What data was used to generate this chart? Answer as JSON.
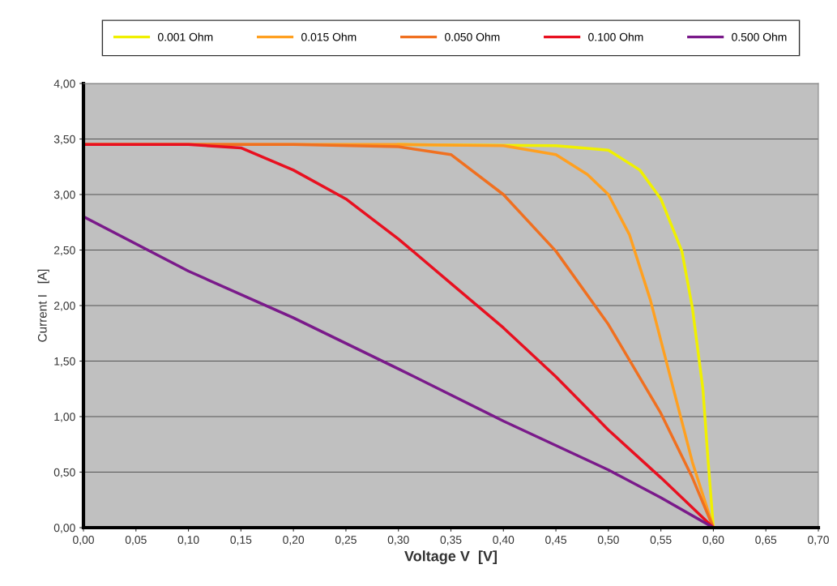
{
  "chart_data": {
    "type": "line",
    "xlabel": "Voltage V  [V]",
    "ylabel": "Current I   [A]",
    "xlim": [
      0,
      0.7
    ],
    "ylim": [
      0,
      4
    ],
    "xticks": [
      {
        "value": 0,
        "label": "0,00"
      },
      {
        "value": 0.05,
        "label": "0,05"
      },
      {
        "value": 0.1,
        "label": "0,10"
      },
      {
        "value": 0.15,
        "label": "0,15"
      },
      {
        "value": 0.2,
        "label": "0,20"
      },
      {
        "value": 0.25,
        "label": "0,25"
      },
      {
        "value": 0.3,
        "label": "0,30"
      },
      {
        "value": 0.35,
        "label": "0,35"
      },
      {
        "value": 0.4,
        "label": "0,40"
      },
      {
        "value": 0.45,
        "label": "0,45"
      },
      {
        "value": 0.5,
        "label": "0,50"
      },
      {
        "value": 0.55,
        "label": "0,55"
      },
      {
        "value": 0.6,
        "label": "0,60"
      },
      {
        "value": 0.65,
        "label": "0,65"
      },
      {
        "value": 0.7,
        "label": "0,70"
      }
    ],
    "yticks": [
      {
        "value": 0,
        "label": "0,00"
      },
      {
        "value": 0.5,
        "label": "0,50"
      },
      {
        "value": 1,
        "label": "1,00"
      },
      {
        "value": 1.5,
        "label": "1,50"
      },
      {
        "value": 2,
        "label": "2,00"
      },
      {
        "value": 2.5,
        "label": "2,50"
      },
      {
        "value": 3,
        "label": "3,00"
      },
      {
        "value": 3.5,
        "label": "3,50"
      },
      {
        "value": 4,
        "label": "4,00"
      }
    ],
    "grid": "y",
    "legend": "top",
    "marker": "none",
    "line_style": "solid",
    "series": [
      {
        "name": "0.001 Ohm",
        "color": "#f0f000",
        "x": [
          0.3,
          0.45,
          0.5,
          0.53,
          0.55,
          0.57,
          0.58,
          0.59,
          0.595,
          0.6
        ],
        "values": [
          3.45,
          3.44,
          3.4,
          3.22,
          2.96,
          2.49,
          1.98,
          1.25,
          0.6,
          0
        ]
      },
      {
        "name": "0.015 Ohm",
        "color": "#ffa020",
        "x": [
          0,
          0.3,
          0.4,
          0.45,
          0.48,
          0.5,
          0.52,
          0.54,
          0.56,
          0.58,
          0.6
        ],
        "values": [
          3.45,
          3.45,
          3.44,
          3.36,
          3.18,
          3.0,
          2.64,
          2.05,
          1.32,
          0.59,
          0
        ]
      },
      {
        "name": "0.050 Ohm",
        "color": "#f07020",
        "x": [
          0,
          0.2,
          0.3,
          0.35,
          0.4,
          0.45,
          0.5,
          0.55,
          0.58,
          0.6
        ],
        "values": [
          3.45,
          3.45,
          3.43,
          3.36,
          3.0,
          2.49,
          1.83,
          1.03,
          0.45,
          0
        ]
      },
      {
        "name": "0.100 Ohm",
        "color": "#e81020",
        "x": [
          0,
          0.1,
          0.15,
          0.2,
          0.25,
          0.3,
          0.35,
          0.4,
          0.45,
          0.5,
          0.55,
          0.6
        ],
        "values": [
          3.45,
          3.45,
          3.42,
          3.22,
          2.96,
          2.6,
          2.2,
          1.8,
          1.36,
          0.88,
          0.45,
          0
        ]
      },
      {
        "name": "0.500 Ohm",
        "color": "#7a1a8a",
        "x": [
          0,
          0.1,
          0.2,
          0.3,
          0.4,
          0.5,
          0.55,
          0.6
        ],
        "values": [
          2.8,
          2.31,
          1.89,
          1.43,
          0.96,
          0.52,
          0.27,
          0
        ]
      }
    ]
  }
}
